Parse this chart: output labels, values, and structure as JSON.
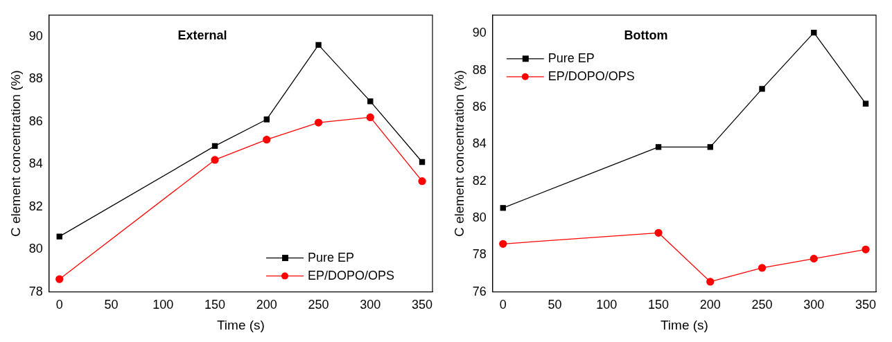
{
  "chart_data": [
    {
      "type": "line",
      "title": "External",
      "xlabel": "Time (s)",
      "ylabel": "C element concentration (%)",
      "x": [
        0,
        150,
        200,
        250,
        300,
        350
      ],
      "xlim": [
        -10,
        360
      ],
      "xticks": [
        0,
        50,
        100,
        150,
        200,
        250,
        300,
        350
      ],
      "ylim": [
        78,
        91
      ],
      "yticks": [
        78,
        80,
        82,
        84,
        86,
        88,
        90
      ],
      "grid": false,
      "legend": "bottom right",
      "series": [
        {
          "name": "Pure EP",
          "color": "#000000",
          "marker": "square",
          "values": [
            80.6,
            84.85,
            86.1,
            89.6,
            86.95,
            84.1
          ]
        },
        {
          "name": "EP/DOPO/OPS",
          "color": "#ff0000",
          "marker": "circle",
          "values": [
            78.6,
            84.2,
            85.15,
            85.95,
            86.2,
            83.2
          ]
        }
      ]
    },
    {
      "type": "line",
      "title": "Bottom",
      "xlabel": "Time (s)",
      "ylabel": "C element concentration (%)",
      "x": [
        0,
        150,
        200,
        250,
        300,
        350
      ],
      "xlim": [
        -10,
        360
      ],
      "xticks": [
        0,
        50,
        100,
        150,
        200,
        250,
        300,
        350
      ],
      "ylim": [
        76,
        91
      ],
      "yticks": [
        76,
        78,
        80,
        82,
        84,
        86,
        88,
        90
      ],
      "grid": false,
      "legend": "top left",
      "series": [
        {
          "name": "Pure EP",
          "color": "#000000",
          "marker": "square",
          "values": [
            80.55,
            83.85,
            83.85,
            87.0,
            90.05,
            86.2
          ]
        },
        {
          "name": "EP/DOPO/OPS",
          "color": "#ff0000",
          "marker": "circle",
          "values": [
            78.6,
            79.2,
            76.55,
            77.3,
            77.8,
            78.3
          ]
        }
      ]
    }
  ]
}
